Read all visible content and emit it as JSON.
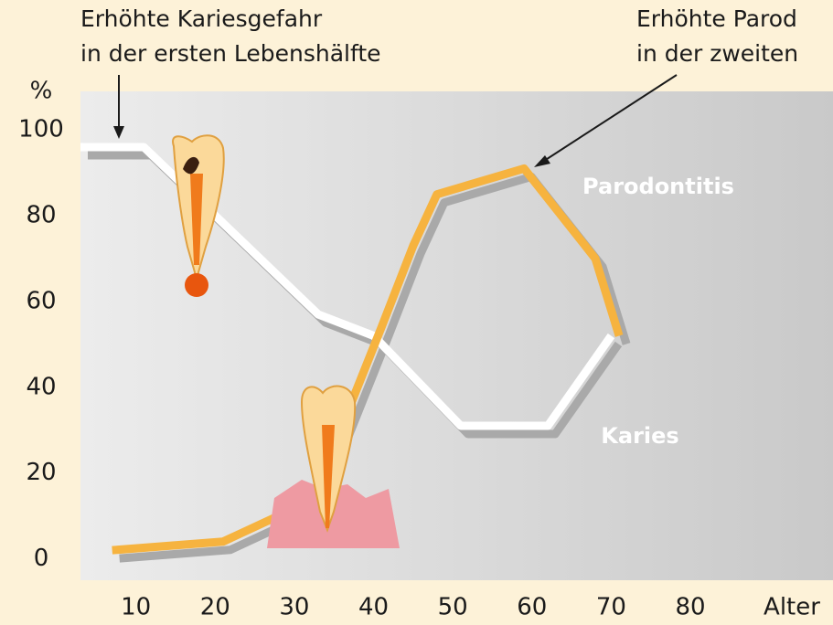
{
  "chart_data": {
    "type": "line",
    "annotations": [
      [
        "Erhöhte Kariesgefahr",
        "in der ersten Lebenshälfte"
      ],
      [
        "Erhöhte Parod",
        "in der zweiten"
      ]
    ],
    "ylabel": "%",
    "xlabel": "Alter",
    "series": [
      {
        "name": "Karies",
        "color": "#ffffff",
        "x": [
          3,
          11,
          33,
          40,
          51,
          62,
          70
        ],
        "values": [
          96,
          96,
          57,
          52,
          31,
          31,
          52
        ]
      },
      {
        "name": "Parodontitis",
        "color": "#f6b33f",
        "x": [
          7,
          21,
          28,
          33,
          41,
          45,
          48,
          59,
          68,
          71
        ],
        "values": [
          2,
          4,
          10,
          17,
          54,
          73,
          85,
          91,
          70,
          52
        ]
      }
    ],
    "xlim": [
      3,
      98
    ],
    "ylim": [
      -5,
      109
    ],
    "xticks": [
      10,
      20,
      30,
      40,
      50,
      60,
      70,
      80
    ],
    "yticks": [
      0,
      20,
      40,
      60,
      80,
      100
    ]
  }
}
